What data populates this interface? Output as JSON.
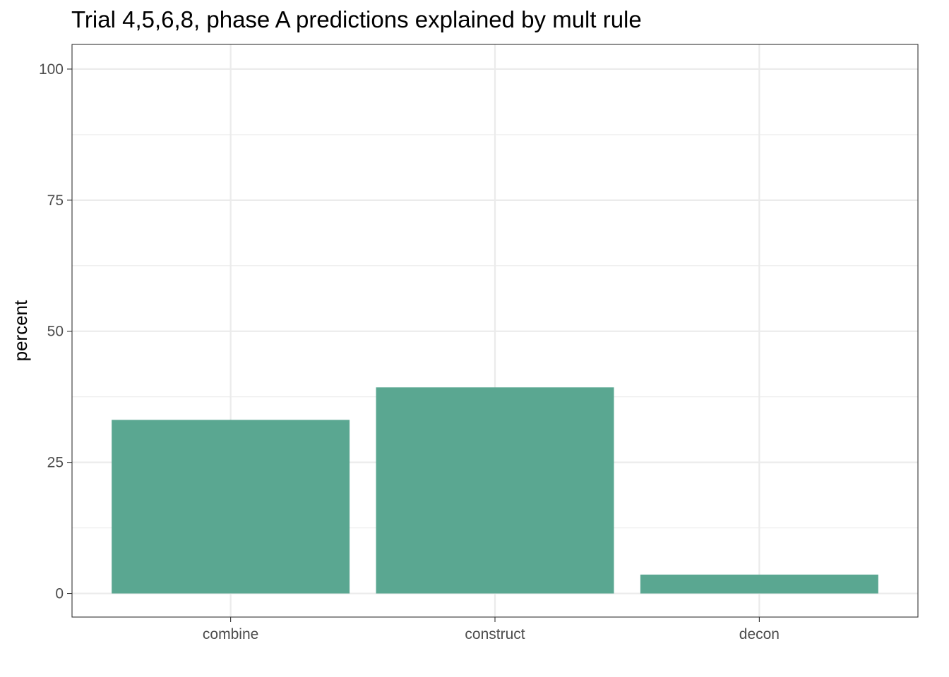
{
  "chart_data": {
    "type": "bar",
    "title": "Trial 4,5,6,8, phase A predictions explained by mult rule",
    "xlabel": "",
    "ylabel": "percent",
    "categories": [
      "combine",
      "construct",
      "decon"
    ],
    "values": [
      33.1,
      39.3,
      3.6
    ],
    "ylim": [
      -4.5,
      104.7
    ],
    "yticks": [
      0,
      25,
      50,
      75,
      100
    ],
    "ytick_labels": [
      "0",
      "25",
      "50",
      "75",
      "100"
    ],
    "grid": true,
    "bar_color": "#5aa791",
    "legend": "none"
  }
}
